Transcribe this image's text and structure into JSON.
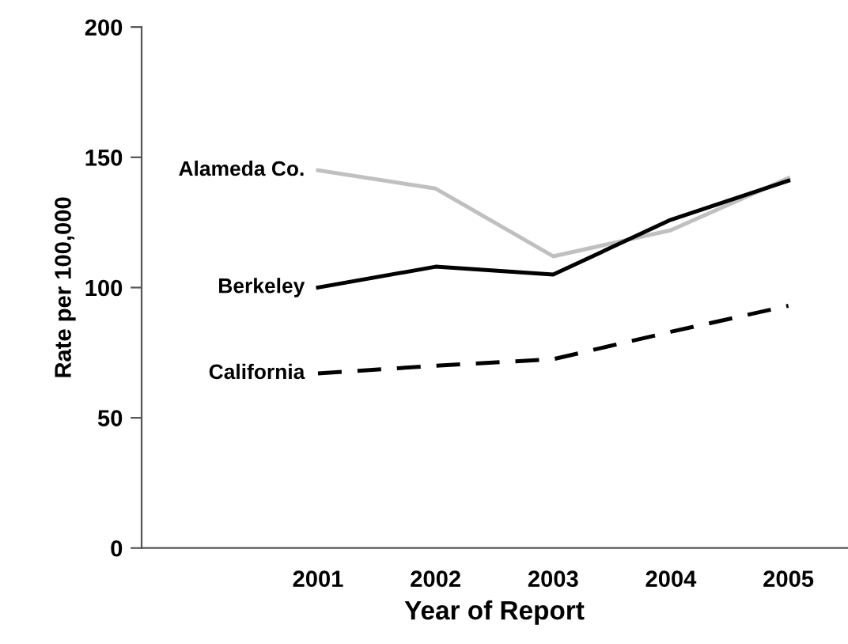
{
  "chart_data": {
    "type": "line",
    "xlabel": "Year of Report",
    "ylabel": "Rate per 100,000",
    "x": [
      2001,
      2002,
      2003,
      2004,
      2005
    ],
    "series": [
      {
        "name": "Alameda Co.",
        "color": "#c0c0c0",
        "line_style": "solid",
        "values": [
          145,
          138,
          112,
          122,
          142
        ]
      },
      {
        "name": "Berkeley",
        "color": "#000000",
        "line_style": "solid",
        "values": [
          100,
          108,
          105,
          126,
          141
        ]
      },
      {
        "name": "California",
        "color": "#000000",
        "line_style": "dashed",
        "values": [
          67,
          70,
          72.5,
          83,
          93
        ]
      }
    ],
    "xlim": [
      1999.5,
      2005.5
    ],
    "xticks": [
      2001,
      2002,
      2003,
      2004,
      2005
    ],
    "ylim": [
      0,
      200
    ],
    "yticks": [
      0,
      50,
      100,
      150,
      200
    ],
    "grid": false,
    "legend": false,
    "marker": "none"
  }
}
